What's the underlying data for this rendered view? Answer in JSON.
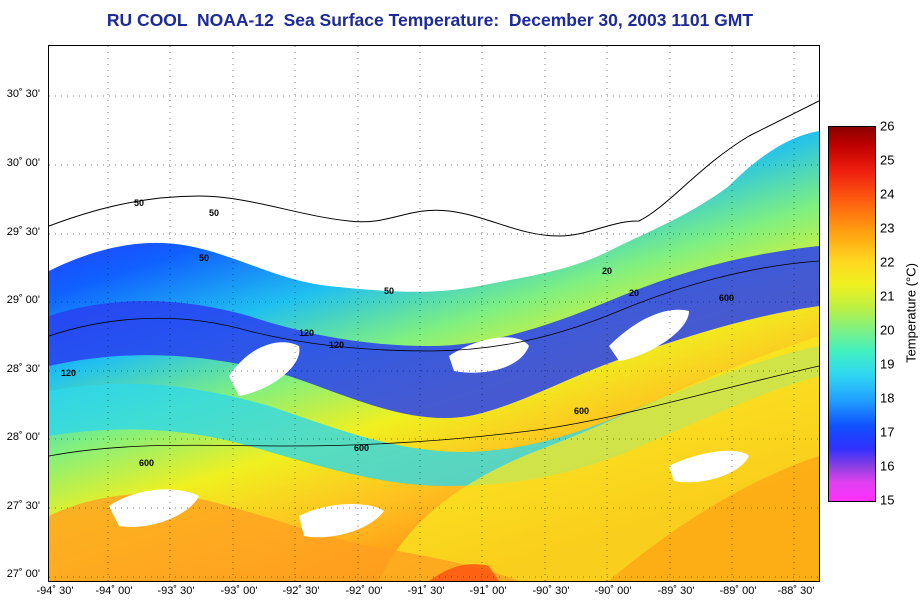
{
  "title": "RU COOL  NOAA-12  Sea Surface Temperature:  December 30, 2003 1101 GMT",
  "latitude_labels": [
    "30˚ 30'",
    "30˚ 00'",
    "29˚ 30'",
    "29˚ 00'",
    "28˚ 30'",
    "28˚ 00'",
    "27˚ 30'",
    "27˚ 00'"
  ],
  "longitude_labels": [
    "-94˚ 30'",
    "-94˚ 00'",
    "-93˚ 30'",
    "-93˚ 00'",
    "-92˚ 30'",
    "-92˚ 00'",
    "-91˚ 30'",
    "-91˚ 00'",
    "-90˚ 30'",
    "-90˚ 00'",
    "-89˚ 30'",
    "-89˚ 00'",
    "-88˚ 30'"
  ],
  "colorbar": {
    "label": "Temperature (°C)",
    "min": 15,
    "max": 26,
    "ticks": [
      "26",
      "25",
      "24",
      "23",
      "22",
      "21",
      "20",
      "19",
      "18",
      "17",
      "16",
      "15"
    ]
  },
  "contour_labels": [
    "50",
    "120",
    "600",
    "20"
  ]
}
